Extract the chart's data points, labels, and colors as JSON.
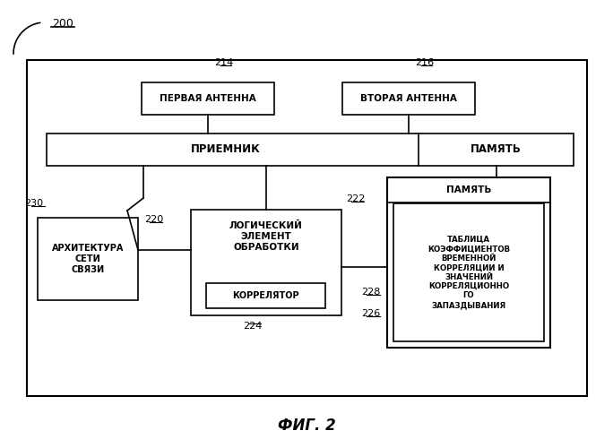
{
  "title": "ФИГ. 2",
  "label_200": "200",
  "label_214": "214",
  "label_216": "216",
  "label_222": "222",
  "label_224": "224",
  "label_226": "226",
  "label_228": "228",
  "label_230": "230",
  "label_220": "220",
  "box_antenna1_text": "ПЕРВАЯ АНТЕННА",
  "box_antenna2_text": "ВТОРАЯ АНТЕННА",
  "box_receiver_text": "ПРИЕМНИК",
  "box_memory_top_text": "ПАМЯТЬ",
  "box_network_text": "АРХИТЕКТУРА\nСЕТИ\nСВЯЗИ",
  "box_logic_text": "ЛОГИЧЕСКИЙ\nЭЛЕМЕНТ\nОБРАБОТКИ",
  "box_correlator_text": "КОРРЕЛЯТОР",
  "box_memory_big_title": "ПАМЯТЬ",
  "box_memory_big_text": "ТАБЛИЦА\nКОЭФФИЦИЕНТОВ\nВРЕМЕННОЙ\nКОРРЕЛЯЦИИ И\nЗНАЧЕНИЙ\nКОРРЕЛЯЦИОННО\nГО\nЗАПАЗДЫВАНИЯ",
  "bg_color": "#ffffff",
  "line_color": "#000000",
  "text_color": "#000000"
}
